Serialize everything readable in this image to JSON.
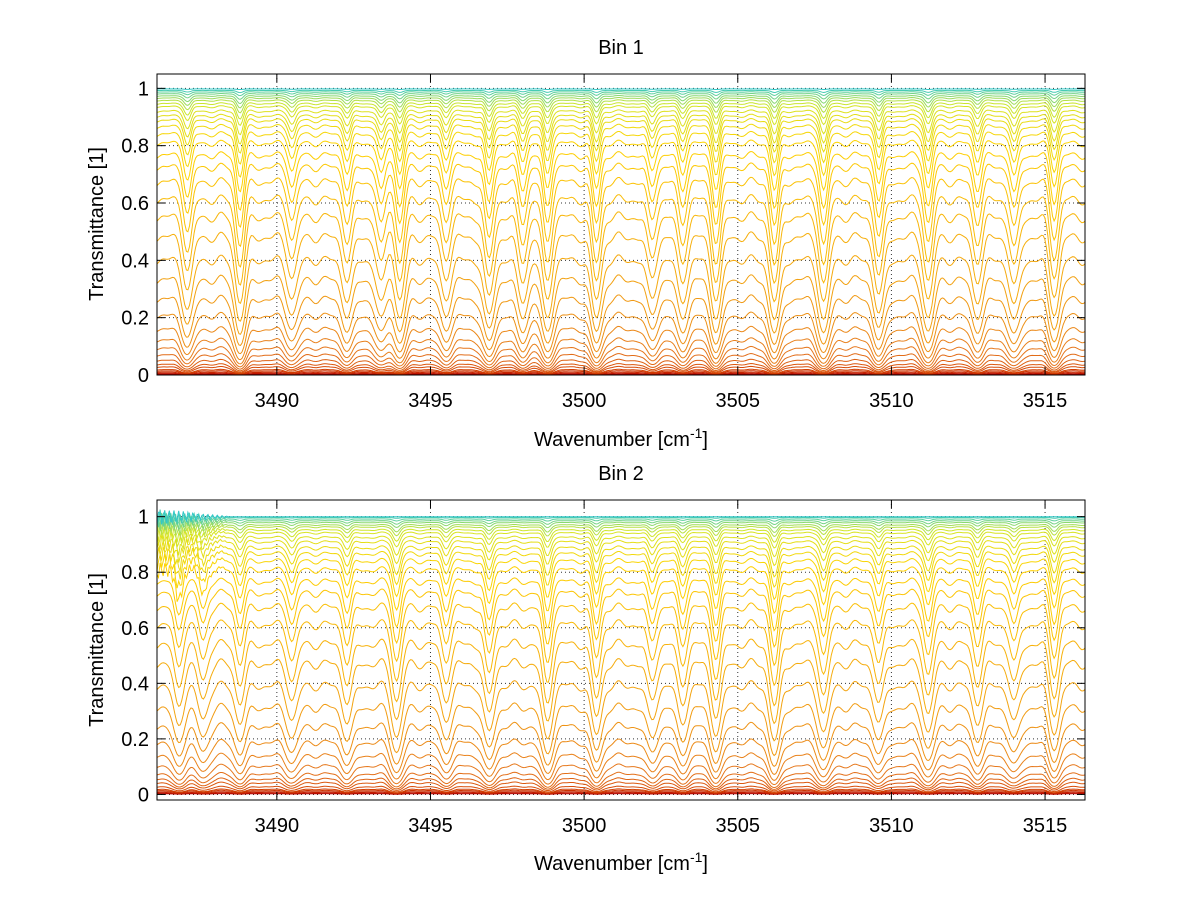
{
  "chart_data": [
    {
      "type": "line",
      "title": "Bin 1",
      "xlabel": "Wavenumber [cm",
      "xlabel_sup": "-1",
      "xlabel_end": "]",
      "ylabel": "Transmittance [1]",
      "xlim": [
        3486.1,
        3516.3
      ],
      "ylim": [
        0,
        1.05
      ],
      "xticks": [
        3490,
        3495,
        3500,
        3505,
        3510,
        3515
      ],
      "xtick_labels": [
        "3490",
        "3495",
        "3500",
        "3505",
        "3510",
        "3515"
      ],
      "yticks": [
        0,
        0.2,
        0.4,
        0.6,
        0.8,
        1
      ],
      "ytick_labels": [
        "0",
        "0.2",
        "0.4",
        "0.6",
        "0.8",
        "1"
      ],
      "grid": true,
      "colormap": [
        "#b40000",
        "#d23c00",
        "#e6781e",
        "#f5aa0f",
        "#ffd200",
        "#d2e628",
        "#32c8c8"
      ],
      "absorption_lines": [
        {
          "x": 3487.1,
          "depth": 0.75
        },
        {
          "x": 3488.8,
          "depth": 1.0
        },
        {
          "x": 3490.5,
          "depth": 0.55
        },
        {
          "x": 3492.3,
          "depth": 0.6
        },
        {
          "x": 3493.4,
          "depth": 0.65
        },
        {
          "x": 3494.0,
          "depth": 0.95
        },
        {
          "x": 3495.5,
          "depth": 0.55
        },
        {
          "x": 3496.9,
          "depth": 0.9
        },
        {
          "x": 3498.0,
          "depth": 0.6
        },
        {
          "x": 3498.8,
          "depth": 0.95
        },
        {
          "x": 3500.4,
          "depth": 0.95
        },
        {
          "x": 3502.2,
          "depth": 0.55
        },
        {
          "x": 3503.2,
          "depth": 0.6
        },
        {
          "x": 3504.3,
          "depth": 0.95
        },
        {
          "x": 3506.2,
          "depth": 1.0
        },
        {
          "x": 3507.8,
          "depth": 1.0
        },
        {
          "x": 3509.6,
          "depth": 0.85
        },
        {
          "x": 3511.2,
          "depth": 0.95
        },
        {
          "x": 3512.8,
          "depth": 0.6
        },
        {
          "x": 3514.0,
          "depth": 0.7
        },
        {
          "x": 3515.3,
          "depth": 0.85
        }
      ],
      "baseline_levels": [
        0.003,
        0.006,
        0.01,
        0.015,
        0.02,
        0.03,
        0.04,
        0.055,
        0.075,
        0.1,
        0.13,
        0.17,
        0.22,
        0.28,
        0.35,
        0.42,
        0.5,
        0.57,
        0.63,
        0.69,
        0.74,
        0.78,
        0.82,
        0.85,
        0.875,
        0.895,
        0.91,
        0.925,
        0.94,
        0.95,
        0.96,
        0.968,
        0.975,
        0.982,
        0.988,
        0.993,
        0.998
      ]
    },
    {
      "type": "line",
      "title": "Bin 2",
      "xlabel": "Wavenumber [cm",
      "xlabel_sup": "-1",
      "xlabel_end": "]",
      "ylabel": "Transmittance [1]",
      "xlim": [
        3486.1,
        3516.3
      ],
      "ylim": [
        -0.02,
        1.06
      ],
      "xticks": [
        3490,
        3495,
        3500,
        3505,
        3510,
        3515
      ],
      "xtick_labels": [
        "3490",
        "3495",
        "3500",
        "3505",
        "3510",
        "3515"
      ],
      "yticks": [
        0,
        0.2,
        0.4,
        0.6,
        0.8,
        1
      ],
      "ytick_labels": [
        "0",
        "0.2",
        "0.4",
        "0.6",
        "0.8",
        "1"
      ],
      "grid": true,
      "colormap": [
        "#b40000",
        "#d23c00",
        "#e6781e",
        "#f5aa0f",
        "#ffd200",
        "#d2e628",
        "#32c8c8"
      ],
      "absorption_lines": [
        {
          "x": 3486.8,
          "depth": 0.6
        },
        {
          "x": 3487.6,
          "depth": 0.5
        },
        {
          "x": 3488.8,
          "depth": 0.55
        },
        {
          "x": 3490.5,
          "depth": 0.5
        },
        {
          "x": 3492.3,
          "depth": 0.55
        },
        {
          "x": 3493.9,
          "depth": 0.85
        },
        {
          "x": 3495.5,
          "depth": 0.5
        },
        {
          "x": 3496.9,
          "depth": 0.75
        },
        {
          "x": 3498.8,
          "depth": 0.9
        },
        {
          "x": 3500.4,
          "depth": 0.8
        },
        {
          "x": 3502.2,
          "depth": 0.5
        },
        {
          "x": 3503.2,
          "depth": 0.55
        },
        {
          "x": 3504.3,
          "depth": 0.8
        },
        {
          "x": 3506.2,
          "depth": 0.95
        },
        {
          "x": 3507.8,
          "depth": 0.75
        },
        {
          "x": 3509.6,
          "depth": 0.55
        },
        {
          "x": 3511.2,
          "depth": 0.75
        },
        {
          "x": 3512.8,
          "depth": 0.55
        },
        {
          "x": 3514.0,
          "depth": 0.55
        },
        {
          "x": 3515.3,
          "depth": 0.75
        }
      ],
      "baseline_levels": [
        0.003,
        0.006,
        0.01,
        0.015,
        0.02,
        0.03,
        0.045,
        0.06,
        0.08,
        0.11,
        0.15,
        0.2,
        0.26,
        0.33,
        0.41,
        0.49,
        0.56,
        0.63,
        0.69,
        0.74,
        0.78,
        0.82,
        0.85,
        0.875,
        0.895,
        0.915,
        0.93,
        0.945,
        0.955,
        0.965,
        0.972,
        0.98,
        0.986,
        0.992,
        0.997,
        1.0
      ]
    }
  ]
}
